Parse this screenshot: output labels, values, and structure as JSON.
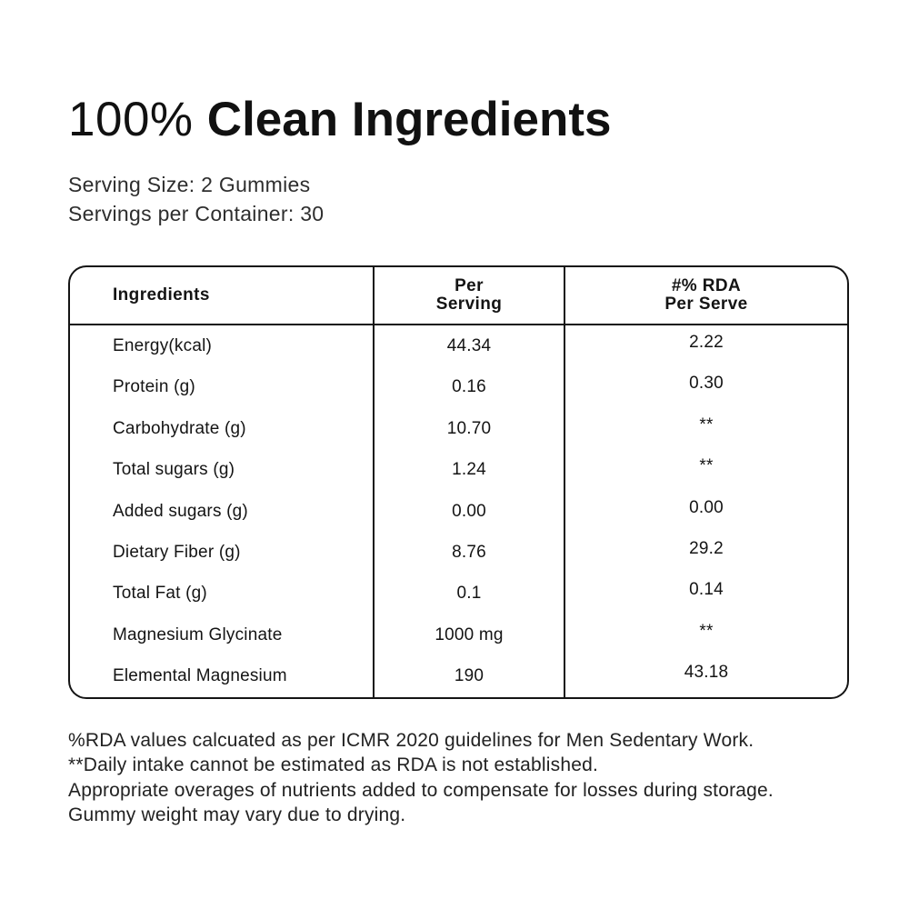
{
  "header": {
    "title_light": "100%",
    "title_bold": "Clean Ingredients",
    "serving_size": "Serving Size: 2 Gummies",
    "servings_per_container": "Servings per Container: 30"
  },
  "table": {
    "headers": {
      "ingredients": "Ingredients",
      "per_serving": "Per\nServing",
      "rda_per_serve": "#% RDA\nPer Serve"
    },
    "rows": [
      {
        "name": "Energy(kcal)",
        "per_serving": "44.34",
        "rda": "2.22"
      },
      {
        "name": "Protein (g)",
        "per_serving": "0.16",
        "rda": "0.30"
      },
      {
        "name": "Carbohydrate (g)",
        "per_serving": "10.70",
        "rda": "**"
      },
      {
        "name": "Total sugars (g)",
        "per_serving": "1.24",
        "rda": "**"
      },
      {
        "name": "Added sugars (g)",
        "per_serving": "0.00",
        "rda": "0.00"
      },
      {
        "name": "Dietary Fiber (g)",
        "per_serving": "8.76",
        "rda": "29.2"
      },
      {
        "name": "Total Fat (g)",
        "per_serving": "0.1",
        "rda": "0.14"
      },
      {
        "name": "Magnesium Glycinate",
        "per_serving": "1000 mg",
        "rda": "**"
      },
      {
        "name": "Elemental Magnesium",
        "per_serving": "190",
        "rda": "43.18"
      }
    ]
  },
  "footnotes": {
    "line1": "%RDA values calcuated as per ICMR 2020 guidelines for Men Sedentary Work.",
    "line2": "**Daily intake cannot be estimated as RDA is not established.",
    "line3": "Appropriate overages of nutrients added to compensate for losses during storage.",
    "line4": "Gummy weight may vary due to drying."
  },
  "colors": {
    "background": "#ffffff",
    "text": "#141414",
    "border": "#141414"
  }
}
